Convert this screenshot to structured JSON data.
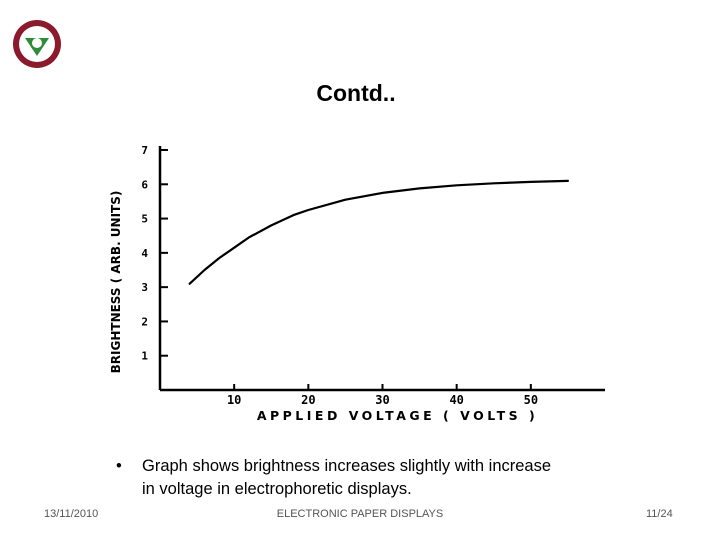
{
  "slide": {
    "title": "Contd..",
    "bullet": "Graph shows brightness increases slightly with increase in voltage in electrophoretic displays.",
    "footer_date": "13/11/2010",
    "footer_center": "ELECTRONIC PAPER DISPLAYS",
    "footer_page": "11/24"
  },
  "logo": {
    "name": "institution-logo-icon",
    "colors": [
      "#8b1a2c",
      "#2e8b3a"
    ]
  },
  "chart_data": {
    "type": "line",
    "title": "",
    "xlabel": "APPLIED VOLTAGE ( VOLTS )",
    "ylabel": "BRIGHTNESS ( ARB. UNITS)",
    "xlim": [
      0,
      60
    ],
    "ylim": [
      0,
      7
    ],
    "xticks": [
      10,
      20,
      30,
      40,
      50
    ],
    "yticks": [
      1,
      2,
      3,
      4,
      5,
      6,
      7
    ],
    "grid": false,
    "series": [
      {
        "x": [
          4,
          6,
          8,
          10,
          12,
          15,
          18,
          20,
          25,
          30,
          35,
          40,
          45,
          50,
          55
        ],
        "y": [
          3.1,
          3.5,
          3.85,
          4.15,
          4.45,
          4.8,
          5.1,
          5.25,
          5.55,
          5.75,
          5.88,
          5.97,
          6.03,
          6.07,
          6.1
        ]
      }
    ],
    "line_color": "#000000"
  }
}
